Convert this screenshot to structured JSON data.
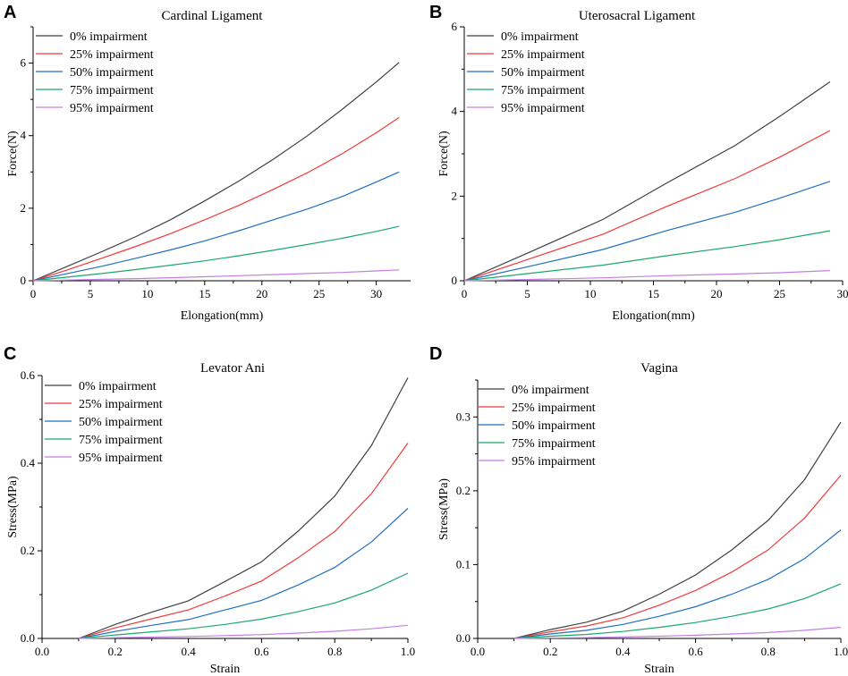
{
  "colors": {
    "0% impairment": "#404040",
    "25% impairment": "#ee3b3b",
    "50% impairment": "#1f6fbf",
    "75% impairment": "#1aa86b",
    "95% impairment": "#c57fe0"
  },
  "chart_data": [
    {
      "panel": "A",
      "type": "line",
      "title": "Cardinal Ligament",
      "xlabel": "Elongation(mm)",
      "ylabel": "Force(N)",
      "xlim": [
        0,
        33
      ],
      "ylim": [
        0,
        7
      ],
      "xticks": [
        0,
        5,
        10,
        15,
        20,
        25,
        30
      ],
      "yticks": [
        0,
        2,
        4,
        6
      ],
      "legend_position": "top-left",
      "x": [
        0,
        3,
        6,
        9,
        12,
        15,
        18,
        21,
        24,
        27,
        30,
        32
      ],
      "series": [
        {
          "name": "0% impairment",
          "values": [
            0,
            0.4,
            0.8,
            1.22,
            1.68,
            2.2,
            2.75,
            3.35,
            4.0,
            4.72,
            5.48,
            6.02
          ]
        },
        {
          "name": "25% impairment",
          "values": [
            0,
            0.3,
            0.62,
            0.95,
            1.3,
            1.68,
            2.08,
            2.52,
            2.98,
            3.5,
            4.08,
            4.5
          ]
        },
        {
          "name": "50% impairment",
          "values": [
            0,
            0.2,
            0.4,
            0.62,
            0.85,
            1.1,
            1.38,
            1.68,
            1.98,
            2.32,
            2.72,
            3.0
          ]
        },
        {
          "name": "75% impairment",
          "values": [
            0,
            0.1,
            0.2,
            0.31,
            0.43,
            0.55,
            0.69,
            0.84,
            1.0,
            1.17,
            1.36,
            1.5
          ]
        },
        {
          "name": "95% impairment",
          "values": [
            0,
            0.02,
            0.04,
            0.06,
            0.085,
            0.11,
            0.14,
            0.17,
            0.2,
            0.23,
            0.27,
            0.3
          ]
        }
      ]
    },
    {
      "panel": "B",
      "type": "line",
      "title": "Uterosacral Ligament",
      "xlabel": "Elongation(mm)",
      "ylabel": "Force(N)",
      "xlim": [
        0,
        30
      ],
      "ylim": [
        0,
        6
      ],
      "xticks": [
        0,
        5,
        10,
        15,
        20,
        25,
        30
      ],
      "yticks": [
        0,
        2,
        4,
        6
      ],
      "legend_position": "top-left",
      "x": [
        0,
        5,
        11,
        16,
        21.5,
        25,
        29
      ],
      "series": [
        {
          "name": "0% impairment",
          "values": [
            0,
            0.65,
            1.45,
            2.3,
            3.2,
            3.88,
            4.7
          ]
        },
        {
          "name": "25% impairment",
          "values": [
            0,
            0.5,
            1.1,
            1.75,
            2.42,
            2.92,
            3.55
          ]
        },
        {
          "name": "50% impairment",
          "values": [
            0,
            0.33,
            0.74,
            1.18,
            1.62,
            1.95,
            2.35
          ]
        },
        {
          "name": "75% impairment",
          "values": [
            0,
            0.17,
            0.37,
            0.59,
            0.81,
            0.97,
            1.18
          ]
        },
        {
          "name": "95% impairment",
          "values": [
            0,
            0.03,
            0.07,
            0.12,
            0.16,
            0.19,
            0.24
          ]
        }
      ]
    },
    {
      "panel": "C",
      "type": "line",
      "title": "Levator Ani",
      "xlabel": "Strain",
      "ylabel": "Stress(MPa)",
      "xlim": [
        0.0,
        1.0
      ],
      "ylim": [
        0,
        0.6
      ],
      "xticks": [
        0.0,
        0.2,
        0.4,
        0.6,
        0.8,
        1.0
      ],
      "yticks": [
        0.0,
        0.2,
        0.4,
        0.6
      ],
      "xtick_labels": [
        "0.0",
        "0.2",
        "0.4",
        "0.6",
        "0.8",
        "1.0"
      ],
      "ytick_labels": [
        "0.0",
        "0.2",
        "0.4",
        "0.6"
      ],
      "legend_position": "top-left",
      "x": [
        0.1,
        0.2,
        0.3,
        0.4,
        0.5,
        0.6,
        0.7,
        0.8,
        0.9,
        1.0
      ],
      "series": [
        {
          "name": "0% impairment",
          "values": [
            0,
            0.032,
            0.06,
            0.086,
            0.13,
            0.175,
            0.245,
            0.325,
            0.44,
            0.595
          ]
        },
        {
          "name": "25% impairment",
          "values": [
            0,
            0.024,
            0.045,
            0.065,
            0.097,
            0.131,
            0.184,
            0.244,
            0.33,
            0.446
          ]
        },
        {
          "name": "50% impairment",
          "values": [
            0,
            0.016,
            0.03,
            0.043,
            0.065,
            0.087,
            0.122,
            0.162,
            0.22,
            0.297
          ]
        },
        {
          "name": "75% impairment",
          "values": [
            0,
            0.008,
            0.015,
            0.022,
            0.032,
            0.044,
            0.061,
            0.081,
            0.11,
            0.149
          ]
        },
        {
          "name": "95% impairment",
          "values": [
            0,
            0.0016,
            0.003,
            0.0045,
            0.0065,
            0.0088,
            0.0123,
            0.0163,
            0.022,
            0.03
          ]
        }
      ]
    },
    {
      "panel": "D",
      "type": "line",
      "title": "Vagina",
      "xlabel": "Strain",
      "ylabel": "Stress(MPa)",
      "xlim": [
        0.0,
        1.0
      ],
      "ylim": [
        0,
        0.35
      ],
      "xticks": [
        0.0,
        0.2,
        0.4,
        0.6,
        0.8,
        1.0
      ],
      "yticks": [
        0.0,
        0.1,
        0.2,
        0.3
      ],
      "xtick_labels": [
        "0.0",
        "0.2",
        "0.4",
        "0.6",
        "0.8",
        "1.0"
      ],
      "ytick_labels": [
        "0.0",
        "0.1",
        "0.2",
        "0.3"
      ],
      "legend_position": "top-left",
      "x": [
        0.1,
        0.2,
        0.3,
        0.4,
        0.5,
        0.6,
        0.7,
        0.8,
        0.9,
        1.0
      ],
      "series": [
        {
          "name": "0% impairment",
          "values": [
            0,
            0.012,
            0.022,
            0.037,
            0.06,
            0.086,
            0.12,
            0.16,
            0.215,
            0.293
          ]
        },
        {
          "name": "25% impairment",
          "values": [
            0,
            0.009,
            0.017,
            0.028,
            0.045,
            0.065,
            0.09,
            0.12,
            0.163,
            0.221
          ]
        },
        {
          "name": "50% impairment",
          "values": [
            0,
            0.006,
            0.011,
            0.019,
            0.03,
            0.043,
            0.06,
            0.08,
            0.108,
            0.147
          ]
        },
        {
          "name": "75% impairment",
          "values": [
            0,
            0.003,
            0.0055,
            0.0095,
            0.015,
            0.0215,
            0.03,
            0.04,
            0.054,
            0.074
          ]
        },
        {
          "name": "95% impairment",
          "values": [
            0,
            0.0006,
            0.0011,
            0.0019,
            0.003,
            0.0043,
            0.006,
            0.008,
            0.011,
            0.015
          ]
        }
      ]
    }
  ]
}
